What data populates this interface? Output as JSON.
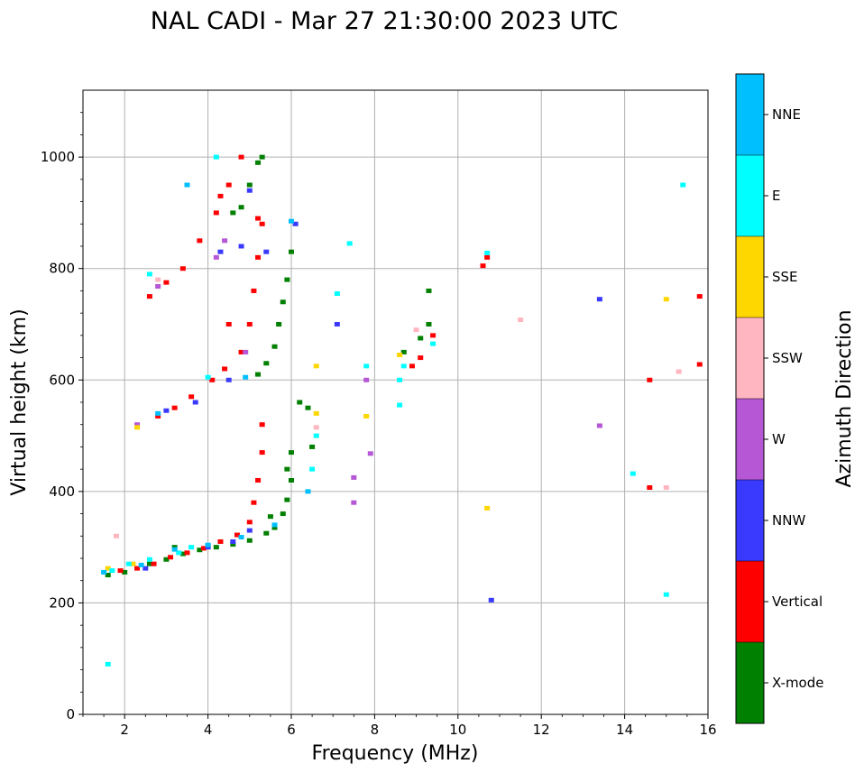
{
  "chart_data": {
    "type": "scatter",
    "title": "NAL CADI - Mar 27 21:30:00 2023 UTC",
    "xlabel": "Frequency (MHz)",
    "ylabel": "Virtual height (km)",
    "xlim": [
      1,
      16
    ],
    "ylim": [
      0,
      1120
    ],
    "xticks": [
      2,
      4,
      6,
      8,
      10,
      12,
      14,
      16
    ],
    "yticks": [
      0,
      200,
      400,
      600,
      800,
      1000
    ],
    "grid": true,
    "colorbar": {
      "title": "Azimuth Direction",
      "categories": [
        {
          "name": "X-mode",
          "color": "#008000"
        },
        {
          "name": "Vertical",
          "color": "#ff0000"
        },
        {
          "name": "NNW",
          "color": "#3a3aff"
        },
        {
          "name": "W",
          "color": "#b657d6"
        },
        {
          "name": "SSW",
          "color": "#ffb6c1"
        },
        {
          "name": "SSE",
          "color": "#ffd700"
        },
        {
          "name": "E",
          "color": "#00ffff"
        },
        {
          "name": "NNE",
          "color": "#00bfff"
        }
      ]
    },
    "series": [
      {
        "name": "X-mode",
        "points": [
          [
            1.6,
            250
          ],
          [
            2.0,
            255
          ],
          [
            2.6,
            270
          ],
          [
            3.0,
            278
          ],
          [
            3.4,
            288
          ],
          [
            3.8,
            295
          ],
          [
            4.2,
            300
          ],
          [
            4.6,
            305
          ],
          [
            5.0,
            312
          ],
          [
            5.4,
            325
          ],
          [
            5.6,
            335
          ],
          [
            5.8,
            360
          ],
          [
            5.9,
            385
          ],
          [
            6.0,
            420
          ],
          [
            6.0,
            470
          ],
          [
            5.2,
            610
          ],
          [
            5.4,
            630
          ],
          [
            5.6,
            660
          ],
          [
            5.7,
            700
          ],
          [
            5.8,
            740
          ],
          [
            5.9,
            780
          ],
          [
            6.0,
            830
          ],
          [
            4.8,
            910
          ],
          [
            5.0,
            950
          ],
          [
            5.2,
            990
          ],
          [
            6.5,
            480
          ],
          [
            6.4,
            550
          ],
          [
            8.7,
            650
          ],
          [
            9.1,
            675
          ],
          [
            9.3,
            700
          ],
          [
            9.3,
            760
          ],
          [
            3.2,
            300
          ],
          [
            4.0,
            302
          ],
          [
            5.5,
            355
          ],
          [
            5.9,
            440
          ],
          [
            6.2,
            560
          ],
          [
            4.6,
            900
          ],
          [
            5.3,
            1000
          ]
        ]
      },
      {
        "name": "Vertical",
        "points": [
          [
            1.9,
            258
          ],
          [
            2.3,
            262
          ],
          [
            2.7,
            270
          ],
          [
            3.1,
            282
          ],
          [
            3.5,
            290
          ],
          [
            3.9,
            298
          ],
          [
            4.3,
            310
          ],
          [
            4.7,
            322
          ],
          [
            5.0,
            345
          ],
          [
            5.1,
            380
          ],
          [
            5.2,
            420
          ],
          [
            5.3,
            470
          ],
          [
            5.3,
            520
          ],
          [
            2.8,
            535
          ],
          [
            3.2,
            550
          ],
          [
            3.6,
            570
          ],
          [
            4.1,
            600
          ],
          [
            4.4,
            620
          ],
          [
            4.8,
            650
          ],
          [
            5.0,
            700
          ],
          [
            5.1,
            760
          ],
          [
            5.2,
            820
          ],
          [
            5.3,
            880
          ],
          [
            2.6,
            750
          ],
          [
            3.0,
            775
          ],
          [
            3.4,
            800
          ],
          [
            3.8,
            850
          ],
          [
            4.2,
            900
          ],
          [
            4.5,
            950
          ],
          [
            4.8,
            1000
          ],
          [
            8.9,
            625
          ],
          [
            9.1,
            640
          ],
          [
            9.4,
            680
          ],
          [
            10.6,
            805
          ],
          [
            10.7,
            820
          ],
          [
            14.6,
            600
          ],
          [
            14.6,
            407
          ],
          [
            15.8,
            628
          ],
          [
            15.8,
            750
          ],
          [
            4.3,
            930
          ],
          [
            5.2,
            890
          ],
          [
            4.5,
            700
          ]
        ]
      },
      {
        "name": "NNW",
        "points": [
          [
            2.5,
            262
          ],
          [
            4.0,
            300
          ],
          [
            4.6,
            310
          ],
          [
            5.0,
            330
          ],
          [
            3.0,
            545
          ],
          [
            3.7,
            560
          ],
          [
            4.5,
            600
          ],
          [
            4.8,
            840
          ],
          [
            5.4,
            830
          ],
          [
            7.1,
            700
          ],
          [
            13.4,
            745
          ],
          [
            10.8,
            205
          ],
          [
            6.1,
            880
          ],
          [
            5.0,
            940
          ],
          [
            4.3,
            830
          ]
        ]
      },
      {
        "name": "W",
        "points": [
          [
            2.3,
            520
          ],
          [
            2.8,
            768
          ],
          [
            4.2,
            820
          ],
          [
            4.9,
            650
          ],
          [
            7.8,
            600
          ],
          [
            7.5,
            425
          ],
          [
            13.4,
            518
          ],
          [
            7.9,
            468
          ],
          [
            7.5,
            380
          ],
          [
            4.4,
            850
          ]
        ]
      },
      {
        "name": "SSW",
        "points": [
          [
            1.8,
            320
          ],
          [
            2.8,
            780
          ],
          [
            11.5,
            708
          ],
          [
            15.3,
            615
          ],
          [
            15.0,
            407
          ],
          [
            6.6,
            515
          ],
          [
            9.0,
            690
          ]
        ]
      },
      {
        "name": "SSE",
        "points": [
          [
            1.6,
            262
          ],
          [
            2.2,
            270
          ],
          [
            2.3,
            515
          ],
          [
            6.6,
            625
          ],
          [
            6.6,
            540
          ],
          [
            7.8,
            535
          ],
          [
            8.6,
            645
          ],
          [
            15.0,
            745
          ],
          [
            10.7,
            370
          ]
        ]
      },
      {
        "name": "E",
        "points": [
          [
            1.6,
            90
          ],
          [
            1.7,
            258
          ],
          [
            2.1,
            270
          ],
          [
            2.6,
            278
          ],
          [
            3.3,
            290
          ],
          [
            3.6,
            300
          ],
          [
            4.2,
            1000
          ],
          [
            2.6,
            790
          ],
          [
            4.0,
            605
          ],
          [
            6.6,
            500
          ],
          [
            7.4,
            845
          ],
          [
            7.8,
            625
          ],
          [
            8.6,
            555
          ],
          [
            8.6,
            600
          ],
          [
            8.7,
            625
          ],
          [
            14.2,
            432
          ],
          [
            15.0,
            215
          ],
          [
            15.4,
            950
          ],
          [
            10.7,
            828
          ],
          [
            7.1,
            755
          ],
          [
            9.4,
            665
          ],
          [
            6.5,
            440
          ]
        ]
      },
      {
        "name": "NNE",
        "points": [
          [
            1.5,
            255
          ],
          [
            2.4,
            268
          ],
          [
            3.2,
            296
          ],
          [
            4.0,
            304
          ],
          [
            4.8,
            318
          ],
          [
            5.6,
            340
          ],
          [
            6.4,
            400
          ],
          [
            6.0,
            885
          ],
          [
            3.5,
            950
          ],
          [
            2.8,
            540
          ],
          [
            4.9,
            605
          ]
        ]
      }
    ]
  }
}
